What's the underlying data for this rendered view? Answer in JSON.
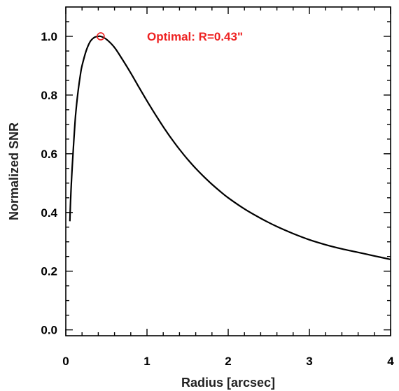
{
  "chart_data": {
    "type": "line",
    "title": "",
    "xlabel": "Radius [arcsec]",
    "ylabel": "Normalized SNR",
    "xlim": [
      0,
      4
    ],
    "ylim": [
      -0.02,
      1.1
    ],
    "x_ticks": [
      0,
      1,
      2,
      3,
      4
    ],
    "x_tick_labels": [
      "0",
      "1",
      "2",
      "3",
      "4"
    ],
    "y_ticks": [
      0.0,
      0.2,
      0.4,
      0.6,
      0.8,
      1.0
    ],
    "y_tick_labels": [
      "0.0",
      "0.2",
      "0.4",
      "0.6",
      "0.8",
      "1.0"
    ],
    "grid": false,
    "series": [
      {
        "color": "#000000",
        "x": [
          0.05,
          0.06,
          0.08,
          0.1,
          0.12,
          0.15,
          0.18,
          0.2,
          0.25,
          0.3,
          0.35,
          0.4,
          0.43,
          0.5,
          0.6,
          0.7,
          0.8,
          0.9,
          1.0,
          1.1,
          1.2,
          1.3,
          1.4,
          1.5,
          1.6,
          1.7,
          1.8,
          1.9,
          2.0,
          2.2,
          2.4,
          2.6,
          2.8,
          3.0,
          3.2,
          3.4,
          3.6,
          3.8,
          4.0
        ],
        "y": [
          0.37,
          0.45,
          0.56,
          0.65,
          0.73,
          0.81,
          0.87,
          0.9,
          0.95,
          0.982,
          0.996,
          1.0,
          1.0,
          0.99,
          0.962,
          0.92,
          0.875,
          0.827,
          0.78,
          0.735,
          0.692,
          0.652,
          0.615,
          0.581,
          0.55,
          0.522,
          0.496,
          0.472,
          0.45,
          0.412,
          0.38,
          0.352,
          0.328,
          0.307,
          0.29,
          0.276,
          0.264,
          0.252,
          0.24
        ]
      }
    ],
    "marker": {
      "x": 0.43,
      "y": 1.0,
      "color": "#ee2222",
      "shape": "open-circle"
    },
    "annotations": [
      {
        "text": "Optimal: R=0.43\"",
        "color": "#ee2222",
        "x": 1.0,
        "y": 1.0
      }
    ]
  }
}
